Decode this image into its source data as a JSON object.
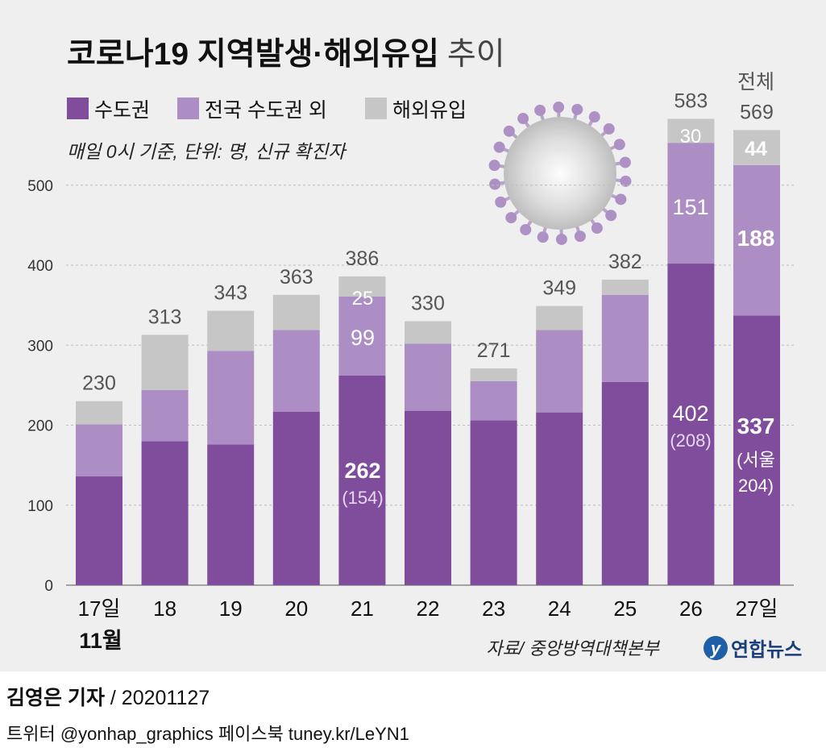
{
  "chart_data": {
    "type": "stacked-bar",
    "title_bold": "코로나19 지역발생·해외유입",
    "title_light": "추이",
    "subtitle": "매일 0시 기준, 단위: 명, 신규 확진자",
    "categories": [
      "17일",
      "18",
      "19",
      "20",
      "21",
      "22",
      "23",
      "24",
      "25",
      "26",
      "27일"
    ],
    "month_label": "11월",
    "series": [
      {
        "name": "수도권",
        "color": "#804d9c",
        "values": [
          136,
          180,
          176,
          217,
          262,
          218,
          206,
          216,
          254,
          402,
          337
        ]
      },
      {
        "name": "전국 수도권 외",
        "color": "#ad8ec4",
        "values": [
          65,
          64,
          117,
          102,
          99,
          84,
          49,
          103,
          109,
          151,
          188
        ]
      },
      {
        "name": "해외유입",
        "color": "#c6c6c6",
        "values": [
          29,
          69,
          50,
          44,
          25,
          28,
          16,
          30,
          19,
          30,
          44
        ]
      }
    ],
    "totals": [
      "230",
      "313",
      "343",
      "363",
      "386",
      "330",
      "271",
      "349",
      "382",
      "583",
      "569"
    ],
    "total_header": "전체",
    "ylim": [
      0,
      580
    ],
    "yticks": [
      0,
      100,
      200,
      300,
      400,
      500
    ],
    "grid": true,
    "legend_position": "top-left",
    "annotations": {
      "d21": {
        "metro": "262",
        "seoul": "(154)",
        "nonmetro": "99",
        "overseas": "25"
      },
      "d26": {
        "metro": "402",
        "seoul": "(208)",
        "nonmetro": "151",
        "overseas": "30"
      },
      "d27": {
        "metro": "337",
        "seoul_1": "(서울",
        "seoul_2": "204)",
        "nonmetro": "188",
        "overseas": "44"
      }
    },
    "source": "자료/ 중앙방역대책본부"
  },
  "logo_text": "연합뉴스",
  "footer": {
    "author": "김영은 기자",
    "date": "/ 20201127",
    "sns": "트위터 @yonhap_graphics  페이스북 tuney.kr/LeYN1"
  }
}
